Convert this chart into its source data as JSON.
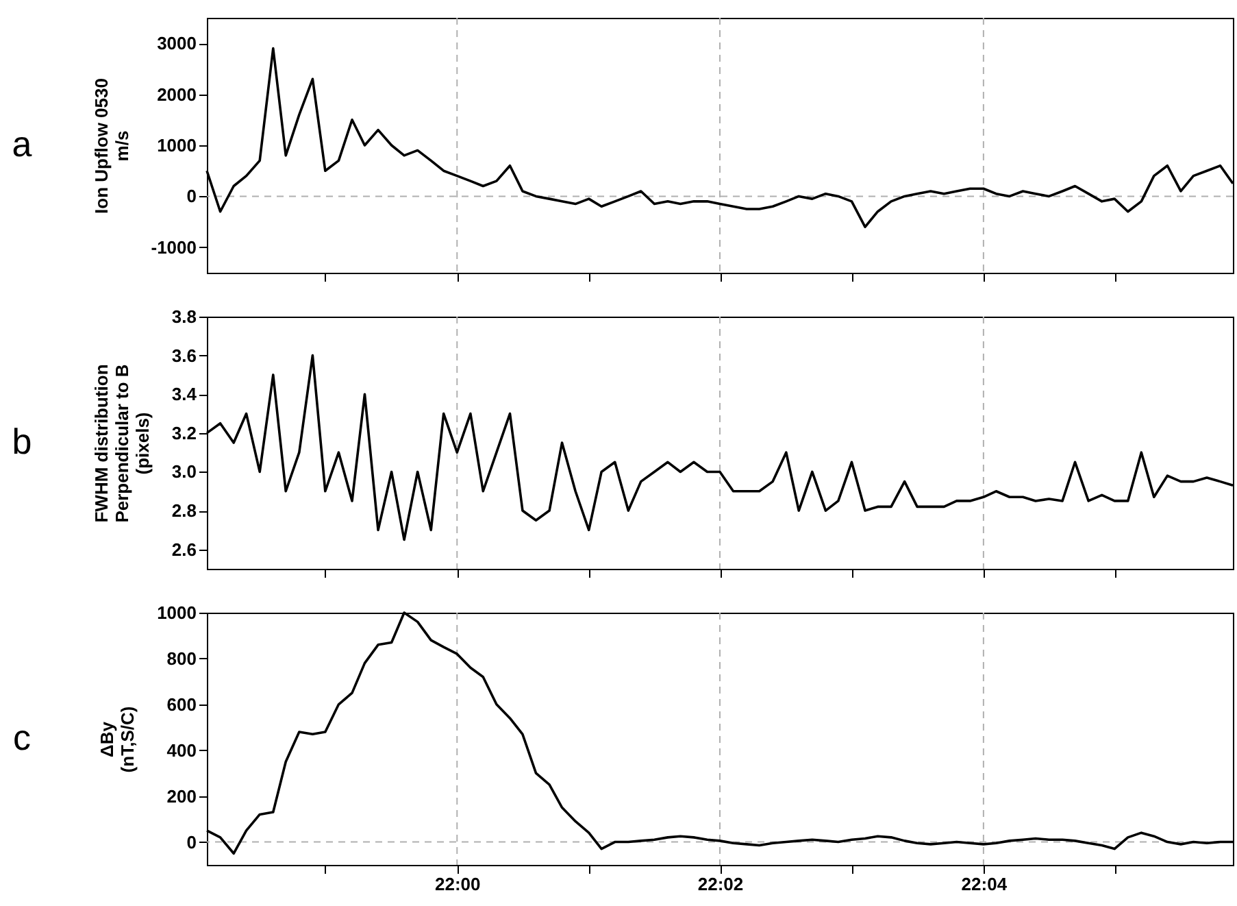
{
  "chart_data": [
    {
      "type": "line",
      "ylabel": "Ion Upflow 0530\nm/s",
      "annotations": [
        "a"
      ],
      "tick_labels": "y",
      "line_style": "solid",
      "x": [
        21.9683,
        21.97,
        21.9717,
        21.9733,
        21.975,
        21.9767,
        21.9783,
        21.98,
        21.9817,
        21.9833,
        21.985,
        21.9867,
        21.9883,
        21.99,
        21.9917,
        21.9933,
        21.995,
        21.9967,
        21.9983,
        22.0,
        22.0017,
        22.0033,
        22.005,
        22.0067,
        22.0083,
        22.01,
        22.0117,
        22.0133,
        22.015,
        22.0167,
        22.0183,
        22.02,
        22.0217,
        22.0233,
        22.025,
        22.0267,
        22.0283,
        22.03,
        22.0317,
        22.0333,
        22.035,
        22.0367,
        22.0383,
        22.04,
        22.0417,
        22.0433,
        22.045,
        22.0467,
        22.0483,
        22.05,
        22.0517,
        22.0533,
        22.055,
        22.0567,
        22.0583,
        22.06,
        22.0617,
        22.0633,
        22.065,
        22.0667,
        22.0683,
        22.07,
        22.0717,
        22.0733,
        22.075,
        22.0767,
        22.0783,
        22.08,
        22.0817,
        22.0833,
        22.085,
        22.0867,
        22.0883,
        22.09,
        22.0917,
        22.0933,
        22.095,
        22.0967,
        22.0983
      ],
      "series": [
        {
          "color": "#000000",
          "values": [
            500,
            -300,
            200,
            400,
            700,
            2900,
            800,
            1600,
            2300,
            500,
            700,
            1500,
            1000,
            1300,
            1000,
            800,
            900,
            700,
            500,
            400,
            300,
            200,
            300,
            600,
            100,
            0,
            -50,
            -100,
            -150,
            -50,
            -200,
            -100,
            0,
            100,
            -150,
            -100,
            -150,
            -100,
            -100,
            -150,
            -200,
            -250,
            -250,
            -200,
            -100,
            0,
            -50,
            50,
            0,
            -100,
            -600,
            -300,
            -100,
            0,
            50,
            100,
            50,
            100,
            150,
            150,
            50,
            0,
            100,
            50,
            0,
            100,
            200,
            50,
            -100,
            -50,
            -300,
            -100,
            400,
            600,
            100,
            400,
            500,
            600,
            250
          ]
        }
      ],
      "xlim": [
        21.9683,
        22.0983
      ],
      "xticks": [
        21.9833,
        22.0,
        22.0167,
        22.0333,
        22.05,
        22.0667,
        22.0833
      ],
      "ylim": [
        -1500,
        3500
      ],
      "yticks": [
        -1000,
        0,
        1000,
        2000,
        3000
      ],
      "ref_lines": [
        {
          "axis": "x",
          "value": 22.0,
          "color": "#b0b0b0",
          "line_style": "dashed"
        },
        {
          "axis": "x",
          "value": 22.0333,
          "color": "#b0b0b0",
          "line_style": "dashed"
        },
        {
          "axis": "x",
          "value": 22.0667,
          "color": "#b0b0b0",
          "line_style": "dashed"
        },
        {
          "axis": "y",
          "value": 0,
          "color": "#b0b0b0",
          "line_style": "dashed"
        }
      ]
    },
    {
      "type": "line",
      "ylabel": "FWHM distribution\nPerpendicular to B\n(pixels)",
      "annotations": [
        "b"
      ],
      "tick_labels": "y",
      "line_style": "solid",
      "x": [
        21.9683,
        21.97,
        21.9717,
        21.9733,
        21.975,
        21.9767,
        21.9783,
        21.98,
        21.9817,
        21.9833,
        21.985,
        21.9867,
        21.9883,
        21.99,
        21.9917,
        21.9933,
        21.995,
        21.9967,
        21.9983,
        22.0,
        22.0017,
        22.0033,
        22.005,
        22.0067,
        22.0083,
        22.01,
        22.0117,
        22.0133,
        22.015,
        22.0167,
        22.0183,
        22.02,
        22.0217,
        22.0233,
        22.025,
        22.0267,
        22.0283,
        22.03,
        22.0317,
        22.0333,
        22.035,
        22.0367,
        22.0383,
        22.04,
        22.0417,
        22.0433,
        22.045,
        22.0467,
        22.0483,
        22.05,
        22.0517,
        22.0533,
        22.055,
        22.0567,
        22.0583,
        22.06,
        22.0617,
        22.0633,
        22.065,
        22.0667,
        22.0683,
        22.07,
        22.0717,
        22.0733,
        22.075,
        22.0767,
        22.0783,
        22.08,
        22.0817,
        22.0833,
        22.085,
        22.0867,
        22.0883,
        22.09,
        22.0917,
        22.0933,
        22.095,
        22.0967,
        22.0983
      ],
      "series": [
        {
          "color": "#000000",
          "values": [
            3.2,
            3.25,
            3.15,
            3.3,
            3.0,
            3.5,
            2.9,
            3.1,
            3.6,
            2.9,
            3.1,
            2.85,
            3.4,
            2.7,
            3.0,
            2.65,
            3.0,
            2.7,
            3.3,
            3.1,
            3.3,
            2.9,
            3.1,
            3.3,
            2.8,
            2.75,
            2.8,
            3.15,
            2.9,
            2.7,
            3.0,
            3.05,
            2.8,
            2.95,
            3.0,
            3.05,
            3.0,
            3.05,
            3.0,
            3.0,
            2.9,
            2.9,
            2.9,
            2.95,
            3.1,
            2.8,
            3.0,
            2.8,
            2.85,
            3.05,
            2.8,
            2.82,
            2.82,
            2.95,
            2.82,
            2.82,
            2.82,
            2.85,
            2.85,
            2.87,
            2.9,
            2.87,
            2.87,
            2.85,
            2.86,
            2.85,
            3.05,
            2.85,
            2.88,
            2.85,
            2.85,
            3.1,
            2.87,
            2.98,
            2.95,
            2.95,
            2.97,
            2.95,
            2.93
          ]
        }
      ],
      "xlim": [
        21.9683,
        22.0983
      ],
      "xticks": [
        21.9833,
        22.0,
        22.0167,
        22.0333,
        22.05,
        22.0667,
        22.0833
      ],
      "ylim": [
        2.5,
        3.8
      ],
      "yticks": [
        2.6,
        2.8,
        {
          "value": 3,
          "label": "3.0"
        },
        3.2,
        3.4,
        3.6,
        3.8
      ],
      "ref_lines": [
        {
          "axis": "x",
          "value": 22.0,
          "color": "#b0b0b0",
          "line_style": "dashed"
        },
        {
          "axis": "x",
          "value": 22.0333,
          "color": "#b0b0b0",
          "line_style": "dashed"
        },
        {
          "axis": "x",
          "value": 22.0667,
          "color": "#b0b0b0",
          "line_style": "dashed"
        }
      ]
    },
    {
      "type": "line",
      "ylabel": "ΔBy\n(nT,S/C)",
      "annotations": [
        "c"
      ],
      "line_style": "solid",
      "x": [
        21.9683,
        21.97,
        21.9717,
        21.9733,
        21.975,
        21.9767,
        21.9783,
        21.98,
        21.9817,
        21.9833,
        21.985,
        21.9867,
        21.9883,
        21.99,
        21.9917,
        21.9933,
        21.995,
        21.9967,
        21.9983,
        22.0,
        22.0017,
        22.0033,
        22.005,
        22.0067,
        22.0083,
        22.01,
        22.0117,
        22.0133,
        22.015,
        22.0167,
        22.0183,
        22.02,
        22.0217,
        22.0233,
        22.025,
        22.0267,
        22.0283,
        22.03,
        22.0317,
        22.0333,
        22.035,
        22.0367,
        22.0383,
        22.04,
        22.0417,
        22.0433,
        22.045,
        22.0467,
        22.0483,
        22.05,
        22.0517,
        22.0533,
        22.055,
        22.0567,
        22.0583,
        22.06,
        22.0617,
        22.0633,
        22.065,
        22.0667,
        22.0683,
        22.07,
        22.0717,
        22.0733,
        22.075,
        22.0767,
        22.0783,
        22.08,
        22.0817,
        22.0833,
        22.085,
        22.0867,
        22.0883,
        22.09,
        22.0917,
        22.0933,
        22.095,
        22.0967,
        22.0983
      ],
      "series": [
        {
          "color": "#000000",
          "values": [
            50,
            20,
            -50,
            50,
            120,
            130,
            350,
            480,
            470,
            480,
            600,
            650,
            780,
            860,
            870,
            1000,
            960,
            880,
            850,
            820,
            760,
            720,
            600,
            540,
            470,
            300,
            250,
            150,
            90,
            40,
            -30,
            0,
            0,
            5,
            10,
            20,
            25,
            20,
            10,
            5,
            -5,
            -10,
            -15,
            -5,
            0,
            5,
            10,
            5,
            0,
            10,
            15,
            25,
            20,
            5,
            -5,
            -10,
            -5,
            0,
            -5,
            -10,
            -5,
            5,
            10,
            15,
            10,
            10,
            5,
            -5,
            -15,
            -30,
            20,
            40,
            25,
            0,
            -10,
            0,
            -5,
            0,
            0
          ]
        }
      ],
      "xlim": [
        21.9683,
        22.0983
      ],
      "xticks": [
        {
          "value": 21.9833,
          "label": null
        },
        {
          "value": 22.0,
          "label": "22:00"
        },
        {
          "value": 22.0167,
          "label": null
        },
        {
          "value": 22.0333,
          "label": "22:02"
        },
        {
          "value": 22.05,
          "label": null
        },
        {
          "value": 22.0667,
          "label": "22:04"
        },
        {
          "value": 22.0833,
          "label": null
        }
      ],
      "ylim": [
        -100,
        1000
      ],
      "yticks": [
        0,
        200,
        400,
        600,
        800,
        1000
      ],
      "ref_lines": [
        {
          "axis": "x",
          "value": 22.0,
          "color": "#b0b0b0",
          "line_style": "dashed"
        },
        {
          "axis": "x",
          "value": 22.0333,
          "color": "#b0b0b0",
          "line_style": "dashed"
        },
        {
          "axis": "x",
          "value": 22.0667,
          "color": "#b0b0b0",
          "line_style": "dashed"
        },
        {
          "axis": "y",
          "value": 0,
          "color": "#b0b0b0",
          "line_style": "dashed"
        }
      ]
    }
  ]
}
